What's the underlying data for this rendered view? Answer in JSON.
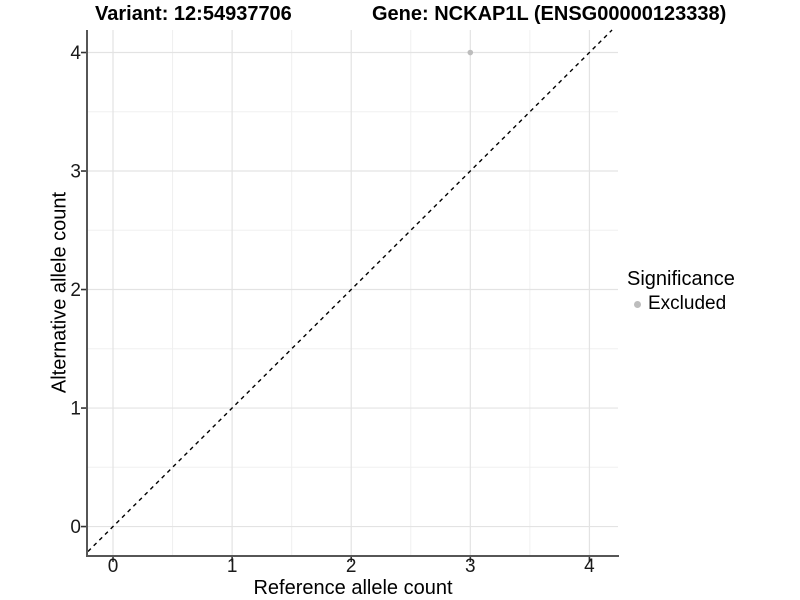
{
  "header": {
    "variant_title": "Variant: 12:54937706",
    "gene_title": "Gene: NCKAP1L (ENSG00000123338)"
  },
  "axes": {
    "x_label": "Reference allele count",
    "y_label": "Alternative allele count"
  },
  "legend": {
    "title": "Significance",
    "items": [
      {
        "label": "Excluded",
        "color": "#bdbdbd"
      }
    ]
  },
  "chart_data": {
    "type": "scatter",
    "title": "Variant: 12:54937706 / Gene: NCKAP1L (ENSG00000123338)",
    "xlabel": "Reference allele count",
    "ylabel": "Alternative allele count",
    "xlim": [
      -0.21,
      4.24
    ],
    "ylim": [
      -0.24,
      4.19
    ],
    "x_ticks": [
      0,
      1,
      2,
      3,
      4
    ],
    "y_ticks": [
      0,
      1,
      2,
      3,
      4
    ],
    "x_minor_ticks": [
      0.5,
      1.5,
      2.5,
      3.5
    ],
    "y_minor_ticks": [
      0.5,
      1.5,
      2.5,
      3.5
    ],
    "grid": "major+minor",
    "legend_position": "right-center",
    "series": [
      {
        "name": "Excluded",
        "color": "#bdbdbd",
        "point_radius": 2.8,
        "points": [
          {
            "x": 3,
            "y": 4
          }
        ]
      }
    ],
    "reference_line": {
      "kind": "identity y=x",
      "style": "dashed",
      "color": "#000000"
    }
  },
  "colors": {
    "background": "#ffffff",
    "grid_major": "#e3e3e3",
    "grid_minor": "#f0f0f0",
    "axis_line": "#565656",
    "tick": "#333333",
    "tick_label": "#1a1a1a"
  }
}
